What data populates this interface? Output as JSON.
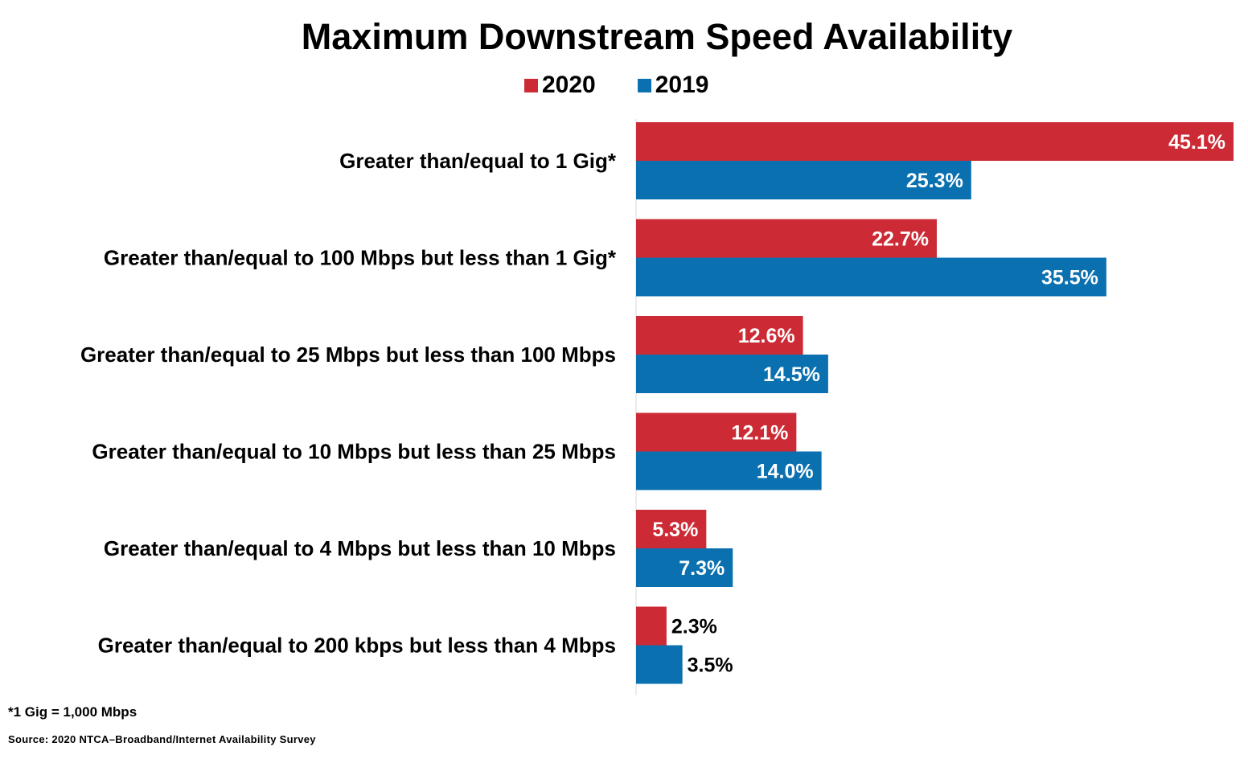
{
  "chart_data": {
    "type": "bar",
    "orientation": "horizontal",
    "title": "Maximum Downstream Speed Availability",
    "categories": [
      "Greater than/equal to 1 Gig*",
      "Greater than/equal to 100 Mbps but less than 1 Gig*",
      "Greater than/equal to 25 Mbps but less than 100 Mbps",
      "Greater than/equal to 10 Mbps but less than 25 Mbps",
      "Greater than/equal to 4 Mbps but less than 10 Mbps",
      "Greater than/equal to 200 kbps but less than 4 Mbps"
    ],
    "series": [
      {
        "name": "2020",
        "color": "#CC2B35",
        "values": [
          45.1,
          22.7,
          12.6,
          12.1,
          5.3,
          2.3
        ],
        "labels": [
          "45.1%",
          "22.7%",
          "12.6%",
          "12.1%",
          "5.3%",
          "2.3%"
        ]
      },
      {
        "name": "2019",
        "color": "#0A70B0",
        "values": [
          25.3,
          35.5,
          14.5,
          14.0,
          7.3,
          3.5
        ],
        "labels": [
          "25.3%",
          "35.5%",
          "14.5%",
          "14.0%",
          "7.3%",
          "3.5%"
        ]
      }
    ],
    "xlim": [
      0,
      45.1
    ],
    "legend_position": "top",
    "grid": false,
    "xlabel": "",
    "ylabel": ""
  },
  "footnote": "*1 Gig = 1,000 Mbps",
  "source": "Source: 2020 NTCA–Broadband/Internet Availability Survey"
}
